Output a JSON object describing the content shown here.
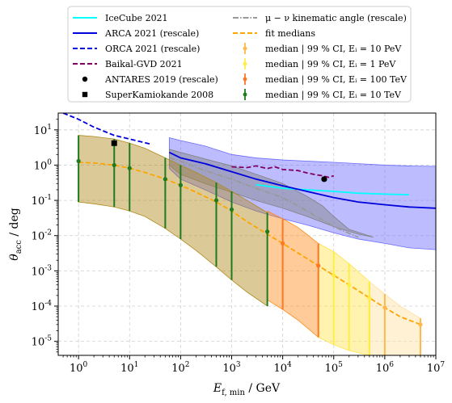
{
  "chart_data": {
    "type": "line",
    "xlabel": "E_f,min / GeV",
    "ylabel": "θ_acc / deg",
    "x_scale": "log",
    "y_scale": "log",
    "xlim": [
      0.4,
      10000000
    ],
    "ylim": [
      4e-06,
      30
    ],
    "x_ticks": [
      {
        "v": 1,
        "label": "10^0"
      },
      {
        "v": 10,
        "label": "10^1"
      },
      {
        "v": 100,
        "label": "10^2"
      },
      {
        "v": 1000,
        "label": "10^3"
      },
      {
        "v": 10000,
        "label": "10^4"
      },
      {
        "v": 100000,
        "label": "10^5"
      },
      {
        "v": 1000000,
        "label": "10^6"
      },
      {
        "v": 10000000,
        "label": "10^7"
      }
    ],
    "y_ticks": [
      {
        "v": 1e-05,
        "label": "10^-5"
      },
      {
        "v": 0.0001,
        "label": "10^-4"
      },
      {
        "v": 0.001,
        "label": "10^-3"
      },
      {
        "v": 0.01,
        "label": "10^-2"
      },
      {
        "v": 0.1,
        "label": "10^-1"
      },
      {
        "v": 1,
        "label": "10^0"
      },
      {
        "v": 10,
        "label": "10^1"
      }
    ],
    "grid": true,
    "legend_position": "top",
    "bands": [
      {
        "name": "ARCA 2021 (rescale) band",
        "color": "#6b6bff",
        "upper": [
          [
            60,
            6
          ],
          [
            100,
            5
          ],
          [
            300,
            3.5
          ],
          [
            1000,
            2
          ],
          [
            3000,
            1.6
          ],
          [
            10000,
            1.4
          ],
          [
            30000,
            1.3
          ],
          [
            100000,
            1.2
          ],
          [
            300000,
            1.1
          ],
          [
            1000000,
            1.0
          ],
          [
            3000000,
            0.95
          ],
          [
            10000000,
            0.92
          ]
        ],
        "lower": [
          [
            60,
            0.8
          ],
          [
            100,
            0.4
          ],
          [
            300,
            0.2
          ],
          [
            1000,
            0.09
          ],
          [
            3000,
            0.05
          ],
          [
            10000,
            0.03
          ],
          [
            30000,
            0.02
          ],
          [
            100000,
            0.012
          ],
          [
            300000,
            0.008
          ],
          [
            1000000,
            0.006
          ],
          [
            3000000,
            0.0045
          ],
          [
            10000000,
            0.004
          ]
        ]
      },
      {
        "name": "μ − ν kinematic angle (rescale) band",
        "color": "#808080",
        "upper": [
          [
            60,
            2.8
          ],
          [
            100,
            2.3
          ],
          [
            300,
            1.5
          ],
          [
            1000,
            0.95
          ],
          [
            3000,
            0.55
          ],
          [
            10000,
            0.3
          ],
          [
            30000,
            0.13
          ],
          [
            60000,
            0.07
          ],
          [
            100000,
            0.035
          ],
          [
            200000,
            0.015
          ]
        ],
        "lower": [
          [
            60,
            1.0
          ],
          [
            100,
            0.55
          ],
          [
            300,
            0.3
          ],
          [
            1000,
            0.17
          ],
          [
            3000,
            0.1
          ],
          [
            10000,
            0.06
          ],
          [
            30000,
            0.035
          ],
          [
            100000,
            0.018
          ],
          [
            300000,
            0.011
          ],
          [
            600000,
            0.009
          ]
        ]
      },
      {
        "name": "CI E_i = 10 TeV",
        "color": "#b08a1a",
        "upper": [
          [
            1,
            7
          ],
          [
            2,
            6.5
          ],
          [
            5,
            5.5
          ],
          [
            10,
            4.2
          ],
          [
            20,
            3
          ],
          [
            50,
            1.6
          ],
          [
            100,
            1.0
          ],
          [
            200,
            0.62
          ],
          [
            500,
            0.32
          ],
          [
            1000,
            0.18
          ],
          [
            2000,
            0.1
          ],
          [
            5000,
            0.045
          ]
        ],
        "lower": [
          [
            1,
            0.09
          ],
          [
            2,
            0.08
          ],
          [
            5,
            0.065
          ],
          [
            10,
            0.05
          ],
          [
            20,
            0.035
          ],
          [
            50,
            0.016
          ],
          [
            100,
            0.008
          ],
          [
            200,
            0.0038
          ],
          [
            500,
            0.0013
          ],
          [
            1000,
            0.00055
          ],
          [
            2000,
            0.00025
          ],
          [
            5000,
            0.0001
          ]
        ]
      },
      {
        "name": "CI E_i = 100 TeV",
        "color": "#ff8c1a",
        "upper": [
          [
            5000,
            0.05
          ],
          [
            10000,
            0.03
          ],
          [
            20000,
            0.017
          ],
          [
            50000,
            0.006
          ]
        ],
        "lower": [
          [
            5000,
            0.00015
          ],
          [
            10000,
            8e-05
          ],
          [
            20000,
            4e-05
          ],
          [
            50000,
            1.3e-05
          ]
        ]
      },
      {
        "name": "CI E_i = 1 PeV",
        "color": "#ffe44d",
        "upper": [
          [
            50000,
            0.006
          ],
          [
            100000,
            0.0035
          ],
          [
            200000,
            0.0016
          ],
          [
            500000,
            0.0005
          ]
        ],
        "lower": [
          [
            50000,
            1.3e-05
          ],
          [
            100000,
            8e-06
          ],
          [
            200000,
            5.5e-06
          ],
          [
            500000,
            4e-06
          ]
        ]
      },
      {
        "name": "CI E_i = 10 PeV",
        "color": "#ffe0a0",
        "upper": [
          [
            500000,
            0.0005
          ],
          [
            1000000,
            0.00022
          ],
          [
            2000000,
            0.0001
          ],
          [
            5000000,
            4.5e-05
          ]
        ],
        "lower": [
          [
            500000,
            4e-06
          ],
          [
            5000000,
            4e-06
          ]
        ]
      }
    ],
    "series": [
      {
        "name": "IceCube 2021",
        "color": "#00ffff",
        "dash": "",
        "points": [
          [
            3000,
            0.28
          ],
          [
            10000,
            0.22
          ],
          [
            30000,
            0.2
          ],
          [
            100000,
            0.18
          ],
          [
            300000,
            0.16
          ],
          [
            1000000,
            0.15
          ],
          [
            3000000,
            0.145
          ]
        ]
      },
      {
        "name": "ARCA 2021 (rescale)",
        "color": "#0000dd",
        "dash": "",
        "points": [
          [
            60,
            2.3
          ],
          [
            100,
            1.6
          ],
          [
            300,
            1.1
          ],
          [
            1000,
            0.65
          ],
          [
            3000,
            0.4
          ],
          [
            10000,
            0.26
          ],
          [
            30000,
            0.18
          ],
          [
            100000,
            0.12
          ],
          [
            300000,
            0.09
          ],
          [
            1000000,
            0.075
          ],
          [
            3000000,
            0.065
          ],
          [
            10000000,
            0.06
          ]
        ]
      },
      {
        "name": "ORCA 2021 (rescale)",
        "color": "#0000dd",
        "dash": "6,3",
        "points": [
          [
            0.5,
            30
          ],
          [
            1,
            20
          ],
          [
            2,
            12
          ],
          [
            5,
            7
          ],
          [
            10,
            5.5
          ],
          [
            25,
            4
          ]
        ]
      },
      {
        "name": "Baikal-GVD 2021",
        "color": "#800060",
        "dash": "6,3",
        "points": [
          [
            1000,
            0.9
          ],
          [
            2000,
            0.85
          ],
          [
            3000,
            0.95
          ],
          [
            5000,
            0.8
          ],
          [
            7000,
            0.9
          ],
          [
            10000,
            0.75
          ],
          [
            20000,
            0.7
          ],
          [
            30000,
            0.6
          ],
          [
            40000,
            0.55
          ],
          [
            60000,
            0.5
          ],
          [
            80000,
            0.45
          ],
          [
            100000,
            0.5
          ]
        ]
      },
      {
        "name": "μ − ν kinematic angle (rescale)",
        "color": "#999999",
        "dash": "7,2,1.5,2",
        "points": [
          [
            60,
            1.6
          ],
          [
            100,
            1.3
          ],
          [
            300,
            0.7
          ],
          [
            1000,
            0.4
          ],
          [
            3000,
            0.22
          ],
          [
            10000,
            0.12
          ],
          [
            30000,
            0.05
          ],
          [
            100000,
            0.018
          ],
          [
            300000,
            0.009
          ]
        ]
      },
      {
        "name": "fit medians",
        "color": "#ffa500",
        "dash": "6,3",
        "points": [
          [
            1,
            1.2
          ],
          [
            2,
            1.15
          ],
          [
            5,
            1.0
          ],
          [
            10,
            0.82
          ],
          [
            20,
            0.62
          ],
          [
            50,
            0.4
          ],
          [
            100,
            0.27
          ],
          [
            200,
            0.17
          ],
          [
            500,
            0.09
          ],
          [
            1000,
            0.05
          ],
          [
            2000,
            0.025
          ],
          [
            5000,
            0.011
          ],
          [
            10000,
            0.006
          ],
          [
            20000,
            0.0032
          ],
          [
            50000,
            0.0014
          ],
          [
            100000,
            0.00075
          ],
          [
            200000,
            0.0004
          ],
          [
            500000,
            0.00017
          ],
          [
            1000000,
            9e-05
          ],
          [
            2000000,
            5e-05
          ],
          [
            5000000,
            3e-05
          ]
        ]
      }
    ],
    "markers": [
      {
        "name": "ANTARES 2019 (rescale)",
        "shape": "circle",
        "color": "#000000",
        "points": [
          [
            65000,
            0.4
          ]
        ]
      },
      {
        "name": "SuperKamiokande 2008",
        "shape": "square",
        "color": "#000000",
        "points": [
          [
            5,
            4.2
          ]
        ]
      }
    ],
    "errorbars": [
      {
        "name": "median | 99 % CI, E_i = 10 PeV",
        "color": "#ffb84d",
        "points": [
          [
            500000,
            0.00017,
            0.00045,
            4.5e-06
          ],
          [
            1000000,
            9e-05,
            0.00022,
            4e-06
          ],
          [
            5000000,
            3e-05,
            4.5e-05,
            4e-06
          ]
        ]
      },
      {
        "name": "median | 99 % CI, E_i = 1 PeV",
        "color": "#ffee44",
        "points": [
          [
            100000,
            0.00075,
            0.0035,
            8e-06
          ],
          [
            200000,
            0.0004,
            0.0016,
            5.5e-06
          ],
          [
            500000,
            0.00017,
            0.0005,
            4e-06
          ]
        ]
      },
      {
        "name": "median | 99 % CI, E_i = 100 TeV",
        "color": "#ff7722",
        "points": [
          [
            10000,
            0.006,
            0.03,
            8e-05
          ],
          [
            50000,
            0.0014,
            0.006,
            1.3e-05
          ]
        ]
      },
      {
        "name": "median | 99 % CI, E_i = 10 TeV",
        "color": "#1e7b1e",
        "points": [
          [
            1,
            1.3,
            7,
            0.09
          ],
          [
            5,
            1.0,
            5.5,
            0.065
          ],
          [
            10,
            0.82,
            4.2,
            0.05
          ],
          [
            50,
            0.4,
            1.6,
            0.016
          ],
          [
            100,
            0.27,
            1.0,
            0.008
          ],
          [
            500,
            0.1,
            0.32,
            0.0013
          ],
          [
            1000,
            0.055,
            0.18,
            0.00055
          ],
          [
            5000,
            0.013,
            0.045,
            0.0001
          ]
        ]
      }
    ]
  },
  "legend": {
    "left": [
      {
        "label": "IceCube 2021",
        "kind": "line",
        "color": "#00ffff",
        "dash": ""
      },
      {
        "label": "ARCA 2021 (rescale)",
        "kind": "line",
        "color": "#0000dd",
        "dash": ""
      },
      {
        "label": "ORCA 2021 (rescale)",
        "kind": "line",
        "color": "#0000dd",
        "dash": "6,3"
      },
      {
        "label": "Baikal-GVD 2021",
        "kind": "line",
        "color": "#800060",
        "dash": "6,3"
      },
      {
        "label": "ANTARES 2019 (rescale)",
        "kind": "circle",
        "color": "#000000",
        "dash": ""
      },
      {
        "label": "SuperKamiokande 2008",
        "kind": "square",
        "color": "#000000",
        "dash": ""
      }
    ],
    "right": [
      {
        "label": "μ − ν kinematic angle (rescale)",
        "kind": "line",
        "color": "#999999",
        "dash": "7,2,1.5,2"
      },
      {
        "label": "fit medians",
        "kind": "line",
        "color": "#ffa500",
        "dash": "6,3"
      },
      {
        "label": "median | 99 % CI, Eᵢ = 10 PeV",
        "kind": "errorbar",
        "color": "#ffb84d",
        "dash": ""
      },
      {
        "label": "median | 99 % CI, Eᵢ = 1 PeV",
        "kind": "errorbar",
        "color": "#ffee44",
        "dash": ""
      },
      {
        "label": "median | 99 % CI, Eᵢ = 100 TeV",
        "kind": "errorbar",
        "color": "#ff7722",
        "dash": ""
      },
      {
        "label": "median | 99 % CI, Eᵢ = 10 TeV",
        "kind": "errorbar",
        "color": "#1e7b1e",
        "dash": ""
      }
    ]
  }
}
